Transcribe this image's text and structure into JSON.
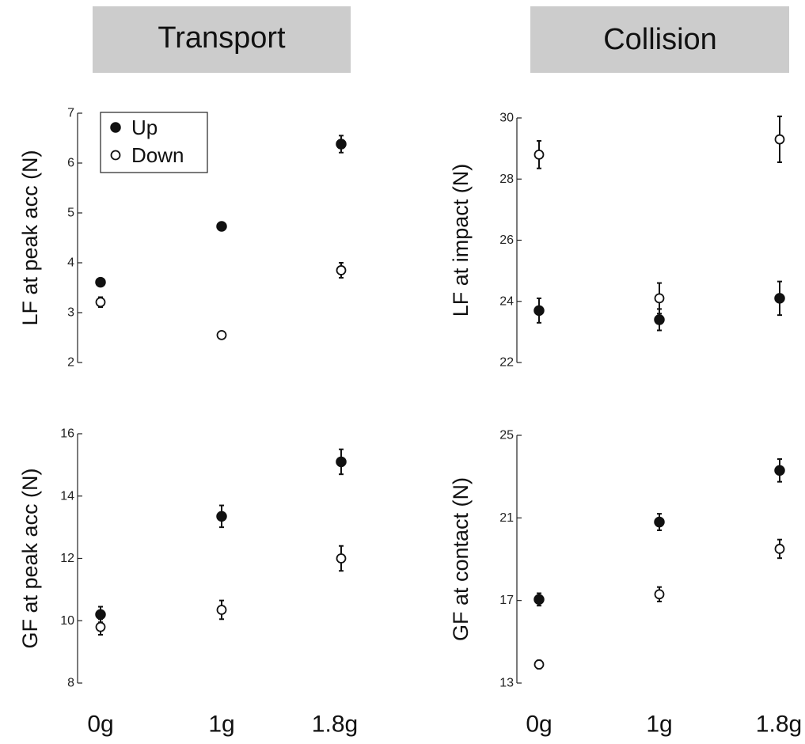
{
  "headers": [
    "Transport",
    "Collision"
  ],
  "x_categories": [
    "0g",
    "1g",
    "1.8g"
  ],
  "legend": {
    "up_label": "Up",
    "down_label": "Down"
  },
  "colors": {
    "up": "#111111",
    "down": "#ffffff",
    "marker_edge": "#111111",
    "header_bg": "#cccccc"
  },
  "chart_data": [
    {
      "type": "scatter",
      "panel": "transport-lf",
      "column": "Transport",
      "ylabel": "LF at peak acc (N)",
      "ylim": [
        2,
        7
      ],
      "yticks": [
        2,
        3,
        4,
        5,
        6,
        7
      ],
      "categories": [
        "0g",
        "1g",
        "1.8g"
      ],
      "legend_shown": true,
      "legend_position": "top-left",
      "series": [
        {
          "name": "Up",
          "filled": true,
          "values": [
            3.61,
            4.73,
            6.38
          ],
          "errors": [
            0.05,
            0.06,
            0.17
          ]
        },
        {
          "name": "Down",
          "filled": false,
          "values": [
            3.21,
            2.55,
            3.85
          ],
          "errors": [
            0.1,
            0.07,
            0.15
          ]
        }
      ]
    },
    {
      "type": "scatter",
      "panel": "collision-lf",
      "column": "Collision",
      "ylabel": "LF at impact (N)",
      "ylim": [
        22,
        30
      ],
      "yticks": [
        22,
        24,
        26,
        28,
        30
      ],
      "categories": [
        "0g",
        "1g",
        "1.8g"
      ],
      "legend_shown": false,
      "series": [
        {
          "name": "Up",
          "filled": true,
          "values": [
            23.7,
            23.4,
            24.1
          ],
          "errors": [
            0.4,
            0.35,
            0.55
          ]
        },
        {
          "name": "Down",
          "filled": false,
          "values": [
            28.8,
            24.1,
            29.3
          ],
          "errors": [
            0.45,
            0.5,
            0.75
          ]
        }
      ]
    },
    {
      "type": "scatter",
      "panel": "transport-gf",
      "column": "Transport",
      "ylabel": "GF at peak acc (N)",
      "ylim": [
        8,
        16
      ],
      "yticks": [
        8,
        10,
        12,
        14,
        16
      ],
      "categories": [
        "0g",
        "1g",
        "1.8g"
      ],
      "legend_shown": false,
      "series": [
        {
          "name": "Up",
          "filled": true,
          "values": [
            10.2,
            13.35,
            15.1
          ],
          "errors": [
            0.25,
            0.35,
            0.4
          ]
        },
        {
          "name": "Down",
          "filled": false,
          "values": [
            9.8,
            10.35,
            12.0
          ],
          "errors": [
            0.25,
            0.3,
            0.4
          ]
        }
      ]
    },
    {
      "type": "scatter",
      "panel": "collision-gf",
      "column": "Collision",
      "ylabel": "GF at contact (N)",
      "ylim": [
        13,
        25
      ],
      "yticks": [
        13,
        17,
        21,
        25
      ],
      "categories": [
        "0g",
        "1g",
        "1.8g"
      ],
      "legend_shown": false,
      "series": [
        {
          "name": "Up",
          "filled": true,
          "values": [
            17.05,
            20.8,
            23.3
          ],
          "errors": [
            0.3,
            0.4,
            0.55
          ]
        },
        {
          "name": "Down",
          "filled": false,
          "values": [
            13.9,
            17.3,
            19.5
          ],
          "errors": [
            0.2,
            0.35,
            0.45
          ]
        }
      ]
    }
  ]
}
